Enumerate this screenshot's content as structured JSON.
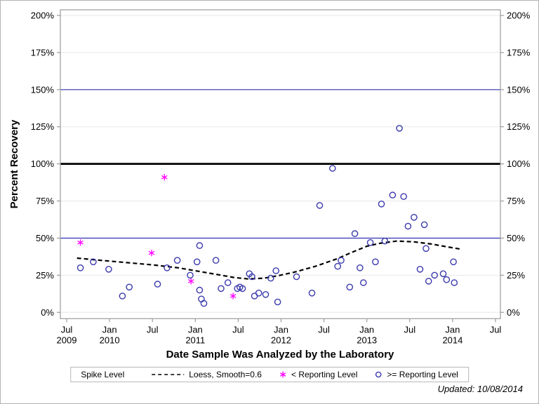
{
  "chart_data": {
    "type": "scatter",
    "title": "",
    "xlabel": "Date Sample Was Analyzed by the Laboratory",
    "ylabel": "Percent Recovery",
    "xlim": [
      2009.5,
      2014.5
    ],
    "ylim": [
      0,
      200
    ],
    "grid": "horizontal",
    "y_ticks": {
      "values": [
        0,
        25,
        50,
        75,
        100,
        125,
        150,
        175,
        200
      ],
      "labels": [
        "0%",
        "25%",
        "50%",
        "75%",
        "100%",
        "125%",
        "150%",
        "175%",
        "200%"
      ],
      "mirrored_right_axis": true
    },
    "x_ticks": [
      {
        "v": 2009.5,
        "month": "Jul",
        "year": "2009"
      },
      {
        "v": 2010.0,
        "month": "Jan",
        "year": "2010"
      },
      {
        "v": 2010.5,
        "month": "Jul",
        "year": ""
      },
      {
        "v": 2011.0,
        "month": "Jan",
        "year": "2011"
      },
      {
        "v": 2011.5,
        "month": "Jul",
        "year": ""
      },
      {
        "v": 2012.0,
        "month": "Jan",
        "year": "2012"
      },
      {
        "v": 2012.5,
        "month": "Jul",
        "year": ""
      },
      {
        "v": 2013.0,
        "month": "Jan",
        "year": "2013"
      },
      {
        "v": 2013.5,
        "month": "Jul",
        "year": ""
      },
      {
        "v": 2014.0,
        "month": "Jan",
        "year": "2014"
      },
      {
        "v": 2014.5,
        "month": "Jul",
        "year": ""
      }
    ],
    "reference_lines": [
      {
        "value": 150,
        "color": "#3333B2",
        "width": 1.2,
        "name": "150% line"
      },
      {
        "value": 100,
        "color": "#000000",
        "width": 2.8,
        "name": "Spike Level (100%)"
      },
      {
        "value": 50,
        "color": "#3333B2",
        "width": 1.2,
        "name": "50% line"
      }
    ],
    "colors": {
      "circle_marker": "#3A3AAD",
      "asterisk_marker": "#FF00FF",
      "loess_line": "#000000",
      "grid_line": "#E8E8E8",
      "frame": "#9B9B9B"
    },
    "series": [
      {
        "name": "Loess, Smooth=0.6",
        "type": "line",
        "style": "dashed",
        "color": "#000000",
        "points": [
          [
            2009.62,
            36.5
          ],
          [
            2009.9,
            35
          ],
          [
            2010.2,
            33.5
          ],
          [
            2010.5,
            32
          ],
          [
            2010.8,
            30
          ],
          [
            2011.05,
            27.5
          ],
          [
            2011.25,
            25.5
          ],
          [
            2011.45,
            23.5
          ],
          [
            2011.62,
            22.5
          ],
          [
            2011.8,
            23
          ],
          [
            2011.95,
            24.5
          ],
          [
            2012.15,
            27
          ],
          [
            2012.4,
            31
          ],
          [
            2012.65,
            36
          ],
          [
            2012.85,
            41
          ],
          [
            2013.0,
            44.5
          ],
          [
            2013.15,
            46.5
          ],
          [
            2013.35,
            48
          ],
          [
            2013.55,
            47.5
          ],
          [
            2013.75,
            46
          ],
          [
            2013.95,
            44
          ],
          [
            2014.1,
            42.5
          ]
        ]
      },
      {
        "name": "< Reporting Level",
        "type": "scatter",
        "marker": "asterisk",
        "color": "#FF00FF",
        "points": [
          [
            2009.66,
            47
          ],
          [
            2010.49,
            40
          ],
          [
            2010.64,
            91
          ],
          [
            2010.95,
            21
          ],
          [
            2011.44,
            11
          ]
        ]
      },
      {
        "name": ">= Reporting Level",
        "type": "scatter",
        "marker": "circle",
        "color": "#3A3AAD",
        "points": [
          [
            2009.66,
            30
          ],
          [
            2009.81,
            34
          ],
          [
            2009.99,
            29
          ],
          [
            2010.15,
            11
          ],
          [
            2010.23,
            17
          ],
          [
            2010.56,
            19
          ],
          [
            2010.67,
            30
          ],
          [
            2010.79,
            35
          ],
          [
            2010.94,
            25
          ],
          [
            2011.02,
            34
          ],
          [
            2011.05,
            45
          ],
          [
            2011.05,
            15
          ],
          [
            2011.07,
            9
          ],
          [
            2011.1,
            6
          ],
          [
            2011.24,
            35
          ],
          [
            2011.3,
            16
          ],
          [
            2011.38,
            20
          ],
          [
            2011.49,
            16
          ],
          [
            2011.52,
            17
          ],
          [
            2011.55,
            16
          ],
          [
            2011.63,
            26
          ],
          [
            2011.66,
            24
          ],
          [
            2011.69,
            11
          ],
          [
            2011.74,
            13
          ],
          [
            2011.82,
            12
          ],
          [
            2011.88,
            23
          ],
          [
            2011.94,
            28
          ],
          [
            2011.96,
            7
          ],
          [
            2012.18,
            24
          ],
          [
            2012.36,
            13
          ],
          [
            2012.45,
            72
          ],
          [
            2012.6,
            97
          ],
          [
            2012.66,
            31
          ],
          [
            2012.7,
            35
          ],
          [
            2012.8,
            17
          ],
          [
            2012.86,
            53
          ],
          [
            2012.92,
            30
          ],
          [
            2012.96,
            20
          ],
          [
            2013.04,
            47
          ],
          [
            2013.1,
            34
          ],
          [
            2013.17,
            73
          ],
          [
            2013.21,
            48
          ],
          [
            2013.3,
            79
          ],
          [
            2013.38,
            124
          ],
          [
            2013.43,
            78
          ],
          [
            2013.48,
            58
          ],
          [
            2013.55,
            64
          ],
          [
            2013.62,
            29
          ],
          [
            2013.67,
            59
          ],
          [
            2013.69,
            43
          ],
          [
            2013.72,
            21
          ],
          [
            2013.79,
            25
          ],
          [
            2013.89,
            26
          ],
          [
            2013.93,
            22
          ],
          [
            2014.01,
            34
          ],
          [
            2014.02,
            20
          ]
        ]
      }
    ],
    "legend": {
      "position": "bottom-center",
      "title": "Spike Level",
      "items": [
        {
          "label": "Loess, Smooth=0.6",
          "marker": "dashed-line",
          "color": "#000000"
        },
        {
          "label": "< Reporting Level",
          "marker": "asterisk",
          "color": "#FF00FF"
        },
        {
          "label": ">= Reporting Level",
          "marker": "circle",
          "color": "#3A3AAD"
        }
      ]
    }
  },
  "footer": {
    "updated": "Updated: 10/08/2014"
  }
}
